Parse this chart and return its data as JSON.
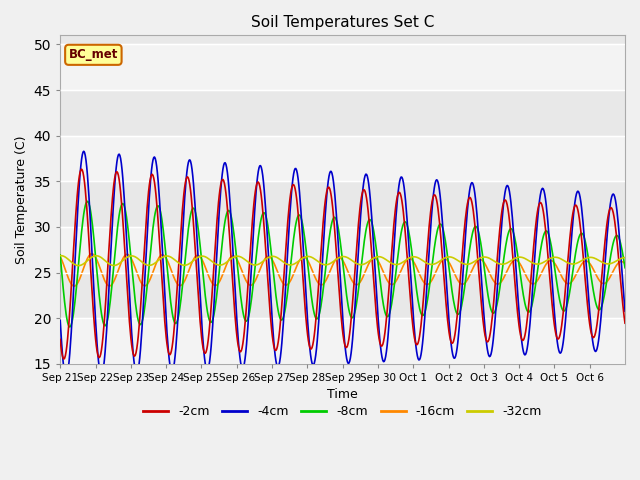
{
  "title": "Soil Temperatures Set C",
  "xlabel": "Time",
  "ylabel": "Soil Temperature (C)",
  "ylim": [
    15,
    51
  ],
  "yticks": [
    15,
    20,
    25,
    30,
    35,
    40,
    45,
    50
  ],
  "legend_label": "BC_met",
  "series_labels": [
    "-2cm",
    "-4cm",
    "-8cm",
    "-16cm",
    "-32cm"
  ],
  "series_colors": [
    "#cc0000",
    "#0000cc",
    "#00cc00",
    "#ff8800",
    "#cccc00"
  ],
  "x_tick_labels": [
    "Sep 21",
    "Sep 22",
    "Sep 23",
    "Sep 24",
    "Sep 25",
    "Sep 26",
    "Sep 27",
    "Sep 28",
    "Sep 29",
    "Sep 30",
    "Oct 1",
    "Oct 2",
    "Oct 3",
    "Oct 4",
    "Oct 5",
    "Oct 6"
  ],
  "n_days": 16,
  "points_per_day": 48,
  "background_color": "#f0f0f0",
  "plot_bg_color": "#e8e8e8",
  "plot_band_light": "#dcdcdc",
  "annotation_box_color": "#ffff99",
  "annotation_box_edge": "#cc6600",
  "mean_2": 26.0,
  "mean_4": 26.0,
  "mean_8": 26.0,
  "mean_16": 25.3,
  "mean_32": 26.3
}
